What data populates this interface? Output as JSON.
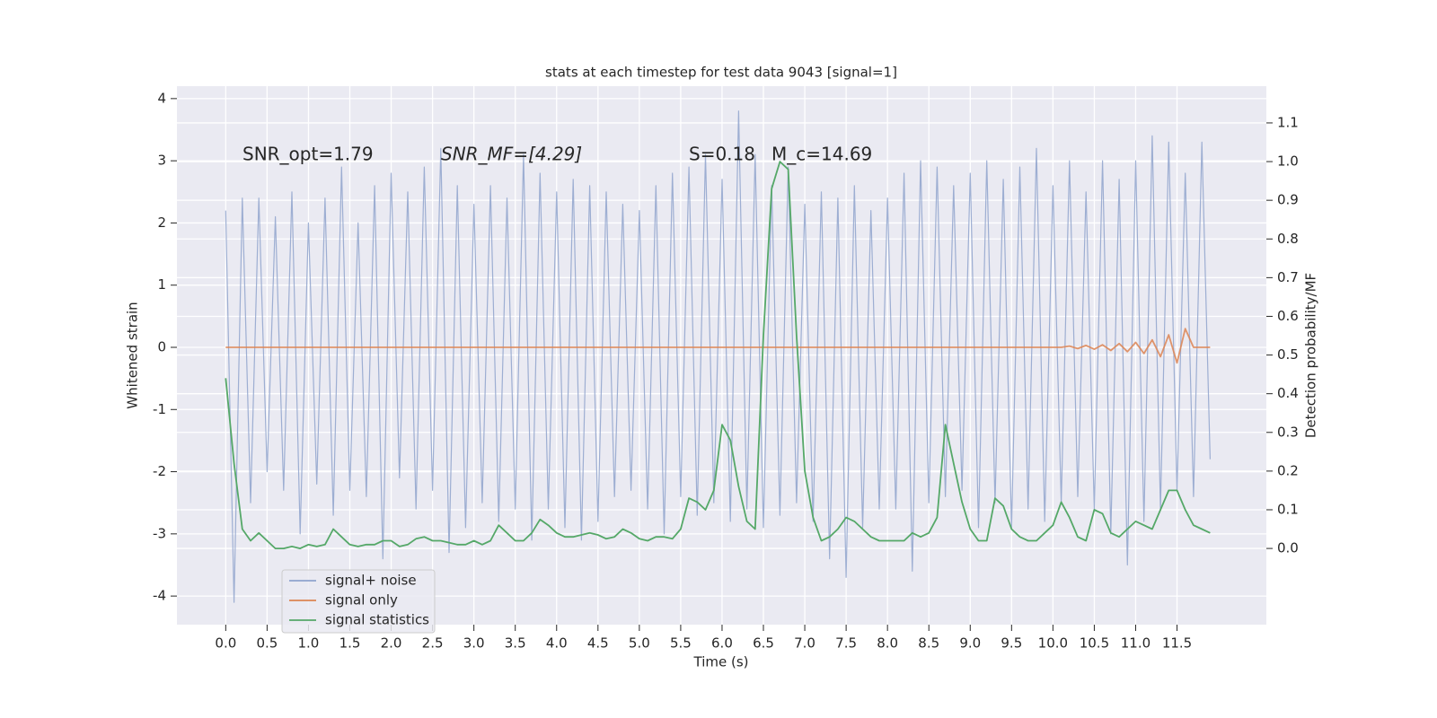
{
  "chart_data": {
    "type": "line",
    "title": "stats at each timestep for test data 9043 [signal=1]",
    "xlabel": "Time (s)",
    "ylabel": "Whitened strain",
    "y2label": "Detection probability/MF",
    "annotations": [
      "SNR_opt=1.79",
      "SNR_MF=[4.29]",
      "S=0.18",
      "M_c=14.69"
    ],
    "xlim": [
      -0.59,
      12.58
    ],
    "ylim": [
      -4.46,
      4.2
    ],
    "y2lim": [
      -0.197,
      1.195
    ],
    "xticks": [
      {
        "value": 0,
        "label": "0.0"
      },
      0.5,
      {
        "value": 1,
        "label": "1.0"
      },
      1.5,
      {
        "value": 2,
        "label": "2.0"
      },
      2.5,
      {
        "value": 3,
        "label": "3.0"
      },
      3.5,
      {
        "value": 4,
        "label": "4.0"
      },
      4.5,
      {
        "value": 5,
        "label": "5.0"
      },
      5.5,
      {
        "value": 6,
        "label": "6.0"
      },
      6.5,
      {
        "value": 7,
        "label": "7.0"
      },
      7.5,
      {
        "value": 8,
        "label": "8.0"
      },
      8.5,
      {
        "value": 9,
        "label": "9.0"
      },
      9.5,
      {
        "value": 10,
        "label": "10.0"
      },
      10.5,
      {
        "value": 11,
        "label": "11.0"
      },
      11.5
    ],
    "yticks": [
      -4,
      -3,
      -2,
      -1,
      0,
      1,
      2,
      3,
      4
    ],
    "y2ticks": [
      {
        "value": 0,
        "label": "0.0"
      },
      0.1,
      0.2,
      0.3,
      0.4,
      0.5,
      0.6,
      0.7,
      0.8,
      0.9,
      {
        "value": 1,
        "label": "1.0"
      },
      1.1
    ],
    "grid": true,
    "x": [
      0,
      0.1,
      0.2,
      0.3,
      0.4,
      0.5,
      0.6,
      0.7,
      0.8,
      0.9,
      1,
      1.1,
      1.2,
      1.3,
      1.4,
      1.5,
      1.6,
      1.7,
      1.8,
      1.9,
      2,
      2.1,
      2.2,
      2.3,
      2.4,
      2.5,
      2.6,
      2.7,
      2.8,
      2.9,
      3,
      3.1,
      3.2,
      3.3,
      3.4,
      3.5,
      3.6,
      3.7,
      3.8,
      3.9,
      4,
      4.1,
      4.2,
      4.3,
      4.4,
      4.5,
      4.6,
      4.7,
      4.8,
      4.9,
      5,
      5.1,
      5.2,
      5.3,
      5.4,
      5.5,
      5.6,
      5.7,
      5.8,
      5.9,
      6,
      6.1,
      6.2,
      6.3,
      6.4,
      6.5,
      6.6,
      6.7,
      6.8,
      6.9,
      7,
      7.1,
      7.2,
      7.3,
      7.4,
      7.5,
      7.6,
      7.7,
      7.8,
      7.9,
      8,
      8.1,
      8.2,
      8.3,
      8.4,
      8.5,
      8.6,
      8.7,
      8.8,
      8.9,
      9,
      9.1,
      9.2,
      9.3,
      9.4,
      9.5,
      9.6,
      9.7,
      9.8,
      9.9,
      10,
      10.1,
      10.2,
      10.3,
      10.4,
      10.5,
      10.6,
      10.7,
      10.8,
      10.9,
      11,
      11.1,
      11.2,
      11.3,
      11.4,
      11.5,
      11.6,
      11.7,
      11.8,
      11.9
    ],
    "series": [
      {
        "name": "signal+ noise",
        "color": "#8fa3cd",
        "axis": "y",
        "values": [
          2.2,
          -4.1,
          2.4,
          -2.5,
          2.4,
          -2.0,
          2.1,
          -2.3,
          2.5,
          -3.0,
          2.0,
          -2.2,
          2.4,
          -2.7,
          2.9,
          -2.3,
          2.0,
          -2.4,
          2.6,
          -3.4,
          2.8,
          -2.1,
          2.5,
          -2.6,
          2.9,
          -2.3,
          3.2,
          -3.3,
          2.6,
          -2.9,
          2.3,
          -2.5,
          2.6,
          -2.8,
          2.4,
          -2.6,
          3.1,
          -3.1,
          2.8,
          -2.6,
          2.5,
          -2.9,
          2.7,
          -3.1,
          2.6,
          -2.8,
          2.5,
          -2.4,
          2.3,
          -2.3,
          2.2,
          -2.6,
          2.6,
          -3.0,
          2.8,
          -2.4,
          2.9,
          -2.7,
          3.1,
          -2.5,
          2.7,
          -2.8,
          3.8,
          -2.6,
          3.1,
          -2.9,
          2.6,
          -2.7,
          2.9,
          -2.5,
          2.3,
          -2.8,
          2.5,
          -3.4,
          2.4,
          -3.7,
          2.6,
          -2.9,
          2.2,
          -2.6,
          2.4,
          -2.6,
          2.8,
          -3.6,
          3.0,
          -2.5,
          2.9,
          -2.4,
          2.6,
          -2.3,
          2.8,
          -2.9,
          3.0,
          -2.5,
          2.7,
          -2.9,
          2.9,
          -2.6,
          3.2,
          -2.8,
          2.6,
          -2.5,
          3.0,
          -2.4,
          2.5,
          -2.6,
          3.0,
          -3.0,
          2.7,
          -3.5,
          3.0,
          -2.8,
          3.4,
          -2.6,
          3.3,
          -2.3,
          2.8,
          -2.4,
          3.3,
          -1.8
        ]
      },
      {
        "name": "signal only",
        "color": "#dd8452",
        "axis": "y",
        "values": [
          0,
          0,
          0,
          0,
          0,
          0,
          0,
          0,
          0,
          0,
          0,
          0,
          0,
          0,
          0,
          0,
          0,
          0,
          0,
          0,
          0,
          0,
          0,
          0,
          0,
          0,
          0,
          0,
          0,
          0,
          0,
          0,
          0,
          0,
          0,
          0,
          0,
          0,
          0,
          0,
          0,
          0,
          0,
          0,
          0,
          0,
          0,
          0,
          0,
          0,
          0,
          0,
          0,
          0,
          0,
          0,
          0,
          0,
          0,
          0,
          0,
          0,
          0,
          0,
          0,
          0,
          0,
          0,
          0,
          0,
          0,
          0,
          0,
          0,
          0,
          0,
          0,
          0,
          0,
          0,
          0,
          0,
          0,
          0,
          0,
          0,
          0,
          0,
          0,
          0,
          0,
          0,
          0,
          0,
          0,
          0,
          0,
          0,
          0,
          0,
          0,
          0,
          0.02,
          -0.02,
          0.03,
          -0.03,
          0.04,
          -0.05,
          0.06,
          -0.07,
          0.08,
          -0.1,
          0.12,
          -0.15,
          0.2,
          -0.25,
          0.3,
          0,
          0,
          0
        ]
      },
      {
        "name": "signal statistics",
        "color": "#55a868",
        "axis": "y2",
        "values": [
          0.44,
          0.22,
          0.05,
          0.02,
          0.04,
          0.02,
          0,
          0,
          0.005,
          0,
          0.01,
          0.005,
          0.01,
          0.05,
          0.03,
          0.01,
          0.005,
          0.01,
          0.01,
          0.02,
          0.02,
          0.005,
          0.01,
          0.025,
          0.03,
          0.02,
          0.02,
          0.015,
          0.01,
          0.01,
          0.02,
          0.01,
          0.02,
          0.06,
          0.04,
          0.02,
          0.02,
          0.04,
          0.075,
          0.06,
          0.04,
          0.03,
          0.03,
          0.035,
          0.04,
          0.035,
          0.025,
          0.03,
          0.05,
          0.04,
          0.025,
          0.02,
          0.03,
          0.03,
          0.025,
          0.05,
          0.13,
          0.12,
          0.1,
          0.15,
          0.32,
          0.28,
          0.16,
          0.07,
          0.05,
          0.55,
          0.93,
          1.0,
          0.98,
          0.55,
          0.2,
          0.08,
          0.02,
          0.03,
          0.05,
          0.08,
          0.07,
          0.05,
          0.03,
          0.02,
          0.02,
          0.02,
          0.02,
          0.04,
          0.03,
          0.04,
          0.08,
          0.32,
          0.22,
          0.12,
          0.05,
          0.02,
          0.02,
          0.13,
          0.11,
          0.05,
          0.03,
          0.02,
          0.02,
          0.04,
          0.06,
          0.12,
          0.08,
          0.03,
          0.02,
          0.1,
          0.09,
          0.04,
          0.03,
          0.05,
          0.07,
          0.06,
          0.05,
          0.1,
          0.15,
          0.15,
          0.1,
          0.06,
          0.05,
          0.04
        ]
      }
    ]
  }
}
